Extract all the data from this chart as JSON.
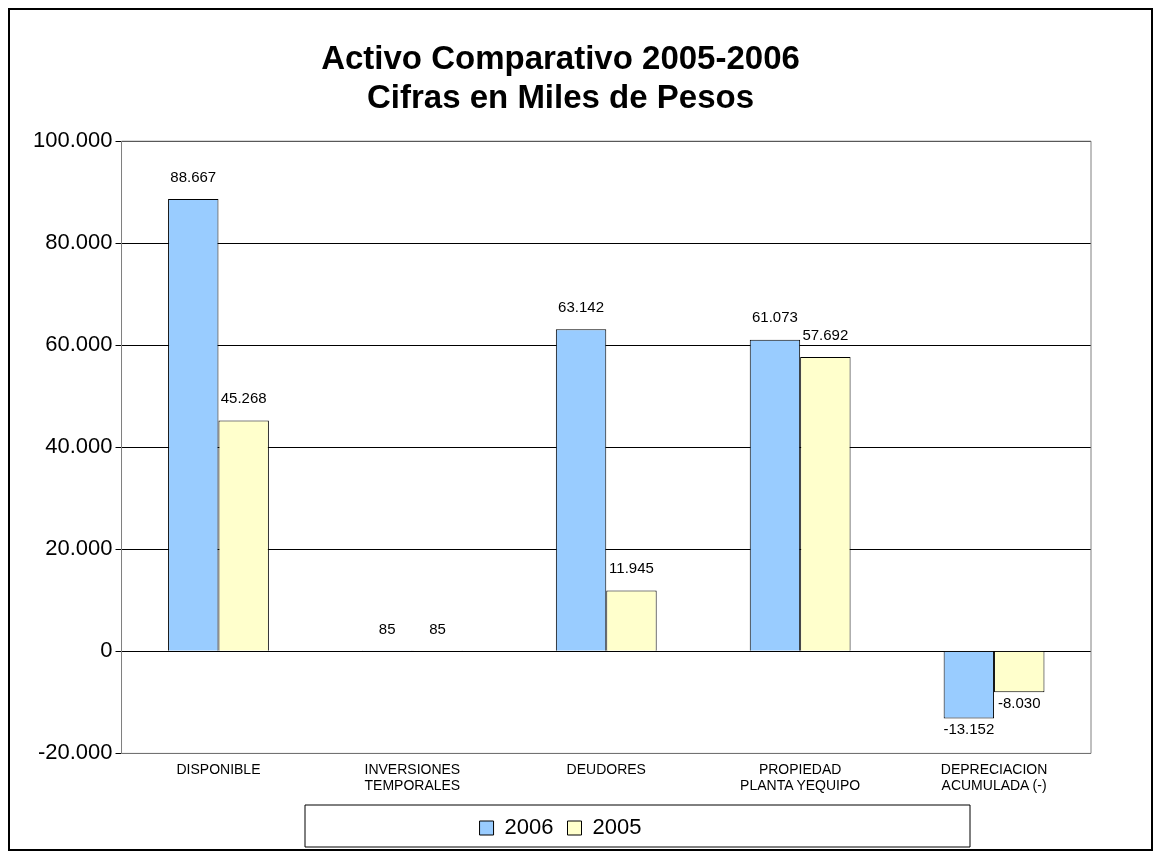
{
  "chart_data": {
    "type": "bar",
    "title": [
      "Activo Comparativo 2005-2006",
      "Cifras en Miles de Pesos"
    ],
    "categories": [
      "DISPONIBLE",
      "INVERSIONES TEMPORALES",
      "DEUDORES",
      "PROPIEDAD PLANTA YEQUIPO",
      "DEPRECIACION ACUMULADA (-)"
    ],
    "series": [
      {
        "name": "2006",
        "color": "#99ccff",
        "values": [
          88667,
          85,
          63142,
          61073,
          -13152
        ],
        "value_labels": [
          "88.667",
          "85",
          "63.142",
          "61.073",
          "-13.152"
        ]
      },
      {
        "name": "2005",
        "color": "#ffffcc",
        "values": [
          45268,
          85,
          11945,
          57692,
          -8030
        ],
        "value_labels": [
          "45.268",
          "85",
          "11.945",
          "57.692",
          "-8.030"
        ]
      }
    ],
    "ylim": [
      -20000,
      100000
    ],
    "yticks": [
      {
        "value": -20000,
        "label": "-20.000"
      },
      {
        "value": 0,
        "label": "0"
      },
      {
        "value": 20000,
        "label": "20.000"
      },
      {
        "value": 40000,
        "label": "40.000"
      },
      {
        "value": 60000,
        "label": "60.000"
      },
      {
        "value": 80000,
        "label": "80.000"
      },
      {
        "value": 100000,
        "label": "100.000"
      }
    ],
    "grid": "y",
    "legend": "bottom"
  }
}
